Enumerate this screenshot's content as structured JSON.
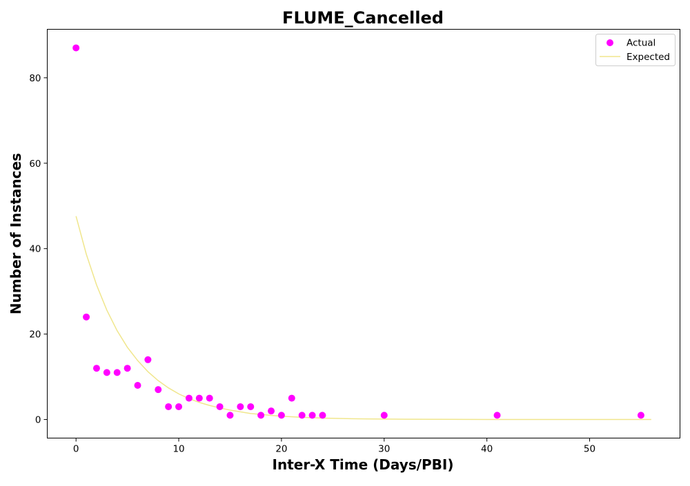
{
  "chart_data": {
    "type": "scatter",
    "title": "FLUME_Cancelled",
    "xlabel": "Inter-X Time (Days/PBI)",
    "ylabel": "Number of Instances",
    "xlim": [
      -2.8,
      58.8
    ],
    "ylim": [
      -4.35,
      91.35
    ],
    "xticks": [
      0,
      10,
      20,
      30,
      40,
      50
    ],
    "yticks": [
      0,
      20,
      40,
      60,
      80
    ],
    "grid": false,
    "legend_position": "top-right",
    "series": [
      {
        "name": "Actual",
        "kind": "scatter",
        "color": "#ff00ff",
        "x": [
          0,
          1,
          2,
          3,
          4,
          5,
          6,
          7,
          8,
          9,
          10,
          11,
          12,
          13,
          14,
          15,
          16,
          17,
          18,
          19,
          20,
          21,
          22,
          23,
          24,
          30,
          41,
          55
        ],
        "y": [
          87,
          24,
          12,
          11,
          11,
          12,
          8,
          14,
          7,
          3,
          3,
          5,
          5,
          5,
          3,
          1,
          3,
          3,
          1,
          2,
          1,
          5,
          1,
          1,
          1,
          1,
          1,
          1
        ]
      },
      {
        "name": "Expected",
        "kind": "line",
        "color": "#f0e68c",
        "x": [
          0,
          1,
          2,
          3,
          4,
          5,
          6,
          7,
          8,
          9,
          10,
          11,
          12,
          13,
          14,
          15,
          16,
          17,
          18,
          19,
          20,
          22,
          24,
          26,
          28,
          30,
          32,
          35,
          40,
          45,
          50,
          56
        ],
        "y": [
          47.6,
          38.7,
          31.5,
          25.6,
          20.8,
          16.9,
          13.8,
          11.2,
          9.1,
          7.4,
          6.0,
          4.9,
          4.0,
          3.3,
          2.7,
          2.2,
          1.8,
          1.4,
          1.2,
          0.96,
          0.78,
          0.52,
          0.34,
          0.22,
          0.15,
          0.1,
          0.07,
          0.04,
          0.01,
          0.0,
          0.0,
          0.0
        ]
      }
    ]
  }
}
